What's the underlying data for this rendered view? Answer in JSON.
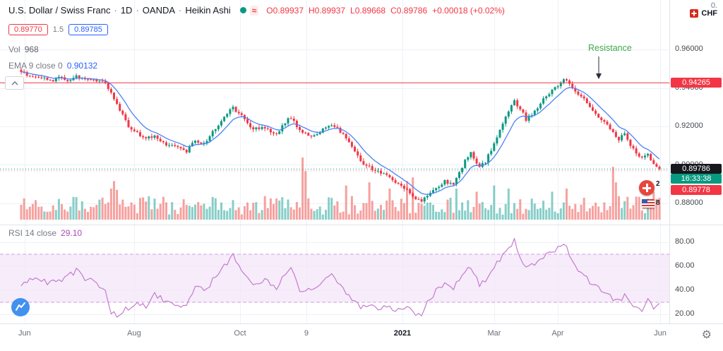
{
  "colors": {
    "up": "#089981",
    "down": "#f23645",
    "vol_up": "#26a69a",
    "vol_down": "#ef5350",
    "ema": "#4c82f7",
    "rsi": "#c57bce",
    "rsi_band": "#f3e6f8",
    "rsi_dash": "#cf9fdd",
    "grid": "#eef1f7",
    "accent_blue": "#2962ff",
    "green_text": "#3fa84b"
  },
  "symbol": {
    "title": "U.S. Dollar / Swiss Franc",
    "sep": "·",
    "interval": "1D",
    "exchange": "OANDA",
    "chart_type": "Heikin Ashi",
    "wave_glyph": "≈",
    "ohlc": {
      "o": "O0.89937",
      "h": "H0.89937",
      "l": "L0.89668",
      "c": "C0.89786",
      "change": "+0.00018 (+0.02%)"
    }
  },
  "orders": {
    "sell": "0.89770",
    "qty": "1.5",
    "buy": "0.89785"
  },
  "volume_legend": {
    "label": "Vol",
    "value": "968"
  },
  "ema_legend": {
    "label": "EMA 9 close 0",
    "value": "0.90132"
  },
  "resistance": {
    "label": "Resistance"
  },
  "rsi_legend": {
    "label": "RSI 14 close",
    "value": "29.10"
  },
  "axis_boxes": {
    "resistance": "0.94265",
    "price": "0.89786",
    "countdown": "16:33:38",
    "secondary": "0.89778"
  },
  "top_right": {
    "partial": "0.",
    "currency": "CHF"
  },
  "ideas": {
    "count1": "2",
    "count2": "8"
  },
  "price_axis": {
    "labels": [
      "0.96000",
      "0.94000",
      "0.92000",
      "0.90000",
      "0.88000"
    ],
    "values": [
      0.96,
      0.94,
      0.92,
      0.9,
      0.88
    ]
  },
  "rsi_axis": {
    "labels": [
      "80.00",
      "60.00",
      "40.00",
      "20.00"
    ],
    "values": [
      80,
      60,
      40,
      20
    ]
  },
  "time_axis": {
    "labels": [
      {
        "text": "Jun",
        "pos": 0.034
      },
      {
        "text": "Aug",
        "pos": 0.1855
      },
      {
        "text": "Oct",
        "pos": 0.332
      },
      {
        "text": "9",
        "pos": 0.4238
      },
      {
        "text": "2021",
        "pos": 0.5566,
        "bold": true
      },
      {
        "text": "Mar",
        "pos": 0.6836
      },
      {
        "text": "Apr",
        "pos": 0.7715
      },
      {
        "text": "Jun",
        "pos": 0.9131
      }
    ]
  },
  "chart_data": {
    "type": "candlestick",
    "style": "Heikin Ashi",
    "symbol": "USD/CHF",
    "interval": "1D",
    "panes": [
      "price+volume",
      "RSI 14"
    ],
    "overlays": [
      "EMA 9"
    ],
    "visible_price_range": {
      "top": 0.96,
      "bottom": 0.88
    },
    "resistance_level": 0.94265,
    "current_close": 0.89786,
    "current_ohlc": {
      "open": 0.89937,
      "high": 0.89937,
      "low": 0.89668,
      "close": 0.89786,
      "change": 0.00018,
      "change_pct": 0.02
    },
    "ema_period": 9,
    "ema_value": 0.90132,
    "rsi_period": 14,
    "rsi_current": 29.1,
    "rsi_upper": 70,
    "rsi_lower": 30,
    "volume_current": 968,
    "candles_count": 221,
    "price_path": [
      [
        0,
        0.9482
      ],
      [
        4,
        0.9462
      ],
      [
        7,
        0.9448
      ],
      [
        10,
        0.9438
      ],
      [
        13,
        0.9452
      ],
      [
        16,
        0.9444
      ],
      [
        19,
        0.9458
      ],
      [
        22,
        0.9448
      ],
      [
        25,
        0.944
      ],
      [
        28,
        0.9438
      ],
      [
        30,
        0.9402
      ],
      [
        32,
        0.9345
      ],
      [
        34,
        0.9282
      ],
      [
        37,
        0.9202
      ],
      [
        40,
        0.9165
      ],
      [
        43,
        0.9135
      ],
      [
        46,
        0.9155
      ],
      [
        50,
        0.9105
      ],
      [
        54,
        0.9085
      ],
      [
        57,
        0.9072
      ],
      [
        60,
        0.9125
      ],
      [
        63,
        0.9108
      ],
      [
        67,
        0.919
      ],
      [
        71,
        0.9268
      ],
      [
        73,
        0.93
      ],
      [
        77,
        0.9235
      ],
      [
        80,
        0.9185
      ],
      [
        84,
        0.9195
      ],
      [
        88,
        0.9155
      ],
      [
        90,
        0.9205
      ],
      [
        93,
        0.9248
      ],
      [
        96,
        0.9175
      ],
      [
        100,
        0.9148
      ],
      [
        104,
        0.9182
      ],
      [
        107,
        0.9205
      ],
      [
        110,
        0.9175
      ],
      [
        112,
        0.9135
      ],
      [
        115,
        0.9065
      ],
      [
        117,
        0.9015
      ],
      [
        120,
        0.8992
      ],
      [
        123,
        0.8962
      ],
      [
        127,
        0.8935
      ],
      [
        129,
        0.8905
      ],
      [
        133,
        0.8872
      ],
      [
        135,
        0.8835
      ],
      [
        138,
        0.8812
      ],
      [
        140,
        0.8838
      ],
      [
        143,
        0.8872
      ],
      [
        146,
        0.8912
      ],
      [
        149,
        0.8892
      ],
      [
        151,
        0.8958
      ],
      [
        153,
        0.9018
      ],
      [
        155,
        0.9058
      ],
      [
        158,
        0.8995
      ],
      [
        160,
        0.9015
      ],
      [
        162,
        0.9082
      ],
      [
        165,
        0.9182
      ],
      [
        168,
        0.9282
      ],
      [
        170,
        0.933
      ],
      [
        172,
        0.9292
      ],
      [
        174,
        0.9235
      ],
      [
        176,
        0.9262
      ],
      [
        178,
        0.9302
      ],
      [
        181,
        0.9362
      ],
      [
        184,
        0.9402
      ],
      [
        186,
        0.9432
      ],
      [
        188,
        0.9448
      ],
      [
        190,
        0.9402
      ],
      [
        193,
        0.9352
      ],
      [
        196,
        0.9306
      ],
      [
        199,
        0.9252
      ],
      [
        202,
        0.9205
      ],
      [
        204,
        0.9165
      ],
      [
        206,
        0.9135
      ],
      [
        208,
        0.9158
      ],
      [
        210,
        0.9105
      ],
      [
        212,
        0.9062
      ],
      [
        214,
        0.9042
      ],
      [
        216,
        0.9062
      ],
      [
        218,
        0.9002
      ],
      [
        220,
        0.89786
      ]
    ],
    "rsi_path": [
      [
        0,
        44
      ],
      [
        5,
        50
      ],
      [
        10,
        46
      ],
      [
        15,
        50
      ],
      [
        19,
        56
      ],
      [
        22,
        50
      ],
      [
        26,
        46
      ],
      [
        29,
        40
      ],
      [
        31,
        22
      ],
      [
        33,
        19
      ],
      [
        36,
        24
      ],
      [
        40,
        30
      ],
      [
        43,
        27
      ],
      [
        46,
        37
      ],
      [
        50,
        31
      ],
      [
        54,
        29
      ],
      [
        57,
        27
      ],
      [
        60,
        44
      ],
      [
        63,
        39
      ],
      [
        67,
        51
      ],
      [
        71,
        63
      ],
      [
        73,
        70
      ],
      [
        77,
        52
      ],
      [
        80,
        44
      ],
      [
        84,
        50
      ],
      [
        88,
        42
      ],
      [
        90,
        51
      ],
      [
        93,
        58
      ],
      [
        96,
        40
      ],
      [
        100,
        42
      ],
      [
        104,
        48
      ],
      [
        107,
        52
      ],
      [
        110,
        46
      ],
      [
        112,
        38
      ],
      [
        115,
        30
      ],
      [
        117,
        26
      ],
      [
        120,
        29
      ],
      [
        123,
        26
      ],
      [
        127,
        25
      ],
      [
        129,
        22
      ],
      [
        133,
        25
      ],
      [
        135,
        21
      ],
      [
        138,
        19
      ],
      [
        140,
        31
      ],
      [
        143,
        39
      ],
      [
        146,
        47
      ],
      [
        149,
        42
      ],
      [
        151,
        50
      ],
      [
        153,
        56
      ],
      [
        155,
        60
      ],
      [
        158,
        45
      ],
      [
        160,
        49
      ],
      [
        162,
        57
      ],
      [
        165,
        65
      ],
      [
        168,
        75
      ],
      [
        170,
        83
      ],
      [
        172,
        67
      ],
      [
        174,
        57
      ],
      [
        176,
        61
      ],
      [
        178,
        65
      ],
      [
        181,
        69
      ],
      [
        184,
        73
      ],
      [
        186,
        76
      ],
      [
        188,
        78
      ],
      [
        190,
        64
      ],
      [
        193,
        54
      ],
      [
        196,
        47
      ],
      [
        199,
        41
      ],
      [
        202,
        37
      ],
      [
        204,
        33
      ],
      [
        206,
        30
      ],
      [
        208,
        36
      ],
      [
        210,
        28
      ],
      [
        212,
        24
      ],
      [
        214,
        23
      ],
      [
        216,
        31
      ],
      [
        218,
        25
      ],
      [
        220,
        29.1
      ]
    ],
    "volume_spikes": [
      [
        31,
        0.5
      ],
      [
        32,
        0.62
      ],
      [
        33,
        0.48
      ],
      [
        97,
        1.0
      ],
      [
        98,
        0.78
      ],
      [
        112,
        0.55
      ],
      [
        120,
        0.6
      ],
      [
        127,
        0.5
      ],
      [
        133,
        0.62
      ],
      [
        135,
        0.68
      ],
      [
        150,
        0.5
      ],
      [
        157,
        0.45
      ],
      [
        163,
        0.55
      ],
      [
        168,
        0.5
      ],
      [
        183,
        0.45
      ],
      [
        188,
        0.5
      ],
      [
        204,
        0.85
      ],
      [
        205,
        0.6
      ],
      [
        218,
        0.45
      ],
      [
        220,
        0.35
      ]
    ]
  }
}
